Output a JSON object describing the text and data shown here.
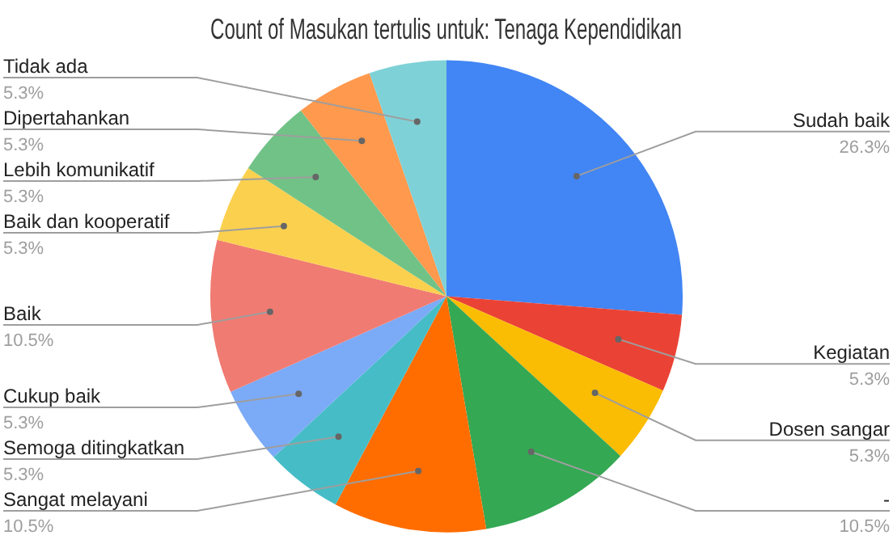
{
  "chart_data": {
    "type": "pie",
    "title": "Count of Masukan tertulis untuk: Tenaga Kependidikan",
    "categories": [
      "Sudah baik",
      "Kegiatan",
      "Dosen sangar",
      "-",
      "Sangat melayani",
      "Semoga ditingkatkan",
      "Cukup baik",
      "Baik",
      "Baik dan kooperatif",
      "Lebih komunikatif",
      "Dipertahankan",
      "Tidak ada"
    ],
    "values": [
      26.3,
      5.3,
      5.3,
      10.5,
      10.5,
      5.3,
      5.3,
      10.5,
      5.3,
      5.3,
      5.3,
      5.3
    ],
    "value_labels": [
      "26.3%",
      "5.3%",
      "5.3%",
      "10.5%",
      "10.5%",
      "5.3%",
      "5.3%",
      "10.5%",
      "5.3%",
      "5.3%",
      "5.3%",
      "5.3%"
    ],
    "colors": [
      "#4285f4",
      "#ea4335",
      "#fbbc04",
      "#34a853",
      "#ff6d01",
      "#46bdc6",
      "#7baaf7",
      "#f07b72",
      "#fcd04f",
      "#71c287",
      "#ff994d",
      "#7ed1d7"
    ],
    "legend": false
  }
}
